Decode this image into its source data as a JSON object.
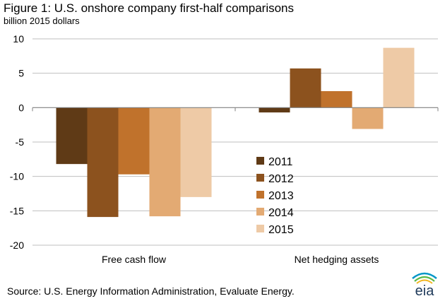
{
  "title": "Figure 1: U.S. onshore company first-half comparisons",
  "subtitle": "billion 2015 dollars",
  "source": "Source: U.S. Energy Information  Administration, Evaluate Energy.",
  "logo_text": "eia",
  "chart_data": {
    "type": "bar",
    "categories": [
      "Free cash flow",
      "Net hedging assets"
    ],
    "series": [
      {
        "name": "2011",
        "color": "#5f3a16",
        "values": [
          -8.2,
          -0.7
        ]
      },
      {
        "name": "2012",
        "color": "#8c521e",
        "values": [
          -15.9,
          5.7
        ]
      },
      {
        "name": "2013",
        "color": "#c0722c",
        "values": [
          -9.7,
          2.4
        ]
      },
      {
        "name": "2014",
        "color": "#e3aa73",
        "values": [
          -15.8,
          -3.1
        ]
      },
      {
        "name": "2015",
        "color": "#eecaa6",
        "values": [
          -13.0,
          8.7
        ]
      }
    ],
    "ylim": [
      -20,
      10
    ],
    "yticks": [
      10,
      5,
      0,
      -5,
      -10,
      -15,
      -20
    ],
    "xlabel": "",
    "ylabel": "",
    "grid": true,
    "legend": "center"
  }
}
